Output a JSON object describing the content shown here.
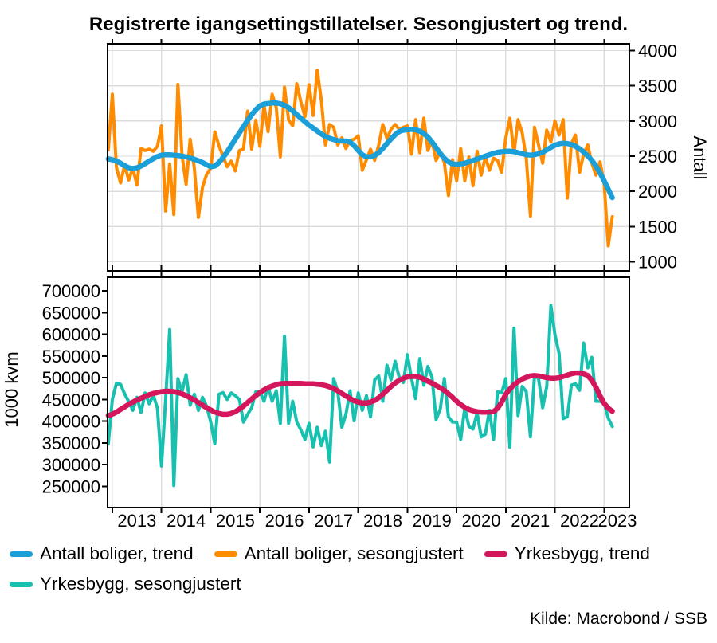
{
  "title": "Registrerte igangsettingstillatelser. Sesongjustert og trend.",
  "source": "Kilde: Macrobond / SSB",
  "legend": [
    {
      "label": "Antall boliger, trend",
      "color": "#1B9FD8"
    },
    {
      "label": "Antall boliger, sesongjustert",
      "color": "#FF8C00"
    },
    {
      "label": "Yrkesbygg, trend",
      "color": "#D4175C"
    },
    {
      "label": "Yrkesbygg, sesongjustert",
      "color": "#18C1AF"
    }
  ],
  "x_axis": {
    "years": [
      2013,
      2014,
      2015,
      2016,
      2017,
      2018,
      2019,
      2020,
      2021,
      2022,
      2023
    ],
    "start_month": "2012-12",
    "end_month": "2023-03",
    "frequency": "monthly"
  },
  "chart_data": [
    {
      "type": "line",
      "title": "",
      "xlabel": "",
      "ylabel": "Antall",
      "y_axis_side": "right",
      "ylim": [
        1000,
        4000
      ],
      "yticks": [
        1000,
        1500,
        2000,
        2500,
        3000,
        3500,
        4000
      ],
      "grid_horizontal": true,
      "grid_vertical": true,
      "legend_position": "below",
      "series": [
        {
          "name": "Antall boliger, sesongjustert",
          "role": "seasonal",
          "color": "#FF8C00",
          "values": [
            2590,
            3380,
            2340,
            2120,
            2370,
            2160,
            2330,
            2090,
            2610,
            2580,
            2600,
            2570,
            2640,
            2930,
            1720,
            2390,
            1670,
            3520,
            2510,
            2100,
            2740,
            2330,
            1630,
            2060,
            2240,
            2330,
            2845,
            2650,
            2500,
            2350,
            2430,
            2290,
            2580,
            2600,
            3140,
            2600,
            3010,
            2640,
            3230,
            2850,
            3380,
            3190,
            2490,
            3480,
            3020,
            2930,
            3530,
            3270,
            3060,
            3515,
            3080,
            3720,
            3290,
            2660,
            2950,
            2910,
            2660,
            2760,
            2610,
            2720,
            2740,
            2790,
            2300,
            2450,
            2600,
            2440,
            2660,
            2950,
            2750,
            2880,
            2950,
            2880,
            2910,
            2930,
            2530,
            3020,
            2550,
            3040,
            2580,
            2720,
            2440,
            2570,
            2410,
            1940,
            2450,
            2150,
            2610,
            2150,
            2490,
            2080,
            2570,
            2230,
            2490,
            2300,
            2470,
            2440,
            2270,
            2760,
            3040,
            2550,
            3020,
            2830,
            2470,
            1650,
            2910,
            2660,
            2400,
            2870,
            2700,
            3000,
            2800,
            3020,
            1905,
            2680,
            2800,
            2270,
            2530,
            2660,
            2400,
            2230,
            2420,
            2100,
            1225,
            1640
          ]
        },
        {
          "name": "Antall boliger, trend",
          "role": "trend",
          "color": "#1B9FD8",
          "values": [
            2460,
            2450,
            2430,
            2400,
            2365,
            2335,
            2325,
            2335,
            2360,
            2395,
            2430,
            2465,
            2495,
            2515,
            2520,
            2520,
            2515,
            2510,
            2500,
            2490,
            2475,
            2455,
            2435,
            2410,
            2380,
            2350,
            2360,
            2410,
            2480,
            2560,
            2650,
            2740,
            2830,
            2920,
            3010,
            3090,
            3160,
            3215,
            3240,
            3250,
            3255,
            3255,
            3245,
            3225,
            3190,
            3145,
            3090,
            3040,
            2990,
            2940,
            2900,
            2855,
            2815,
            2780,
            2755,
            2735,
            2720,
            2715,
            2715,
            2700,
            2650,
            2580,
            2520,
            2490,
            2490,
            2510,
            2550,
            2610,
            2680,
            2745,
            2805,
            2850,
            2870,
            2875,
            2880,
            2875,
            2855,
            2820,
            2770,
            2700,
            2620,
            2540,
            2470,
            2420,
            2390,
            2385,
            2390,
            2400,
            2420,
            2440,
            2460,
            2480,
            2500,
            2520,
            2540,
            2555,
            2565,
            2570,
            2570,
            2565,
            2550,
            2535,
            2520,
            2515,
            2520,
            2535,
            2555,
            2590,
            2625,
            2655,
            2675,
            2685,
            2680,
            2665,
            2640,
            2605,
            2560,
            2505,
            2440,
            2360,
            2260,
            2150,
            2030,
            1910
          ]
        }
      ]
    },
    {
      "type": "line",
      "title": "",
      "xlabel": "",
      "ylabel": "1000 kvm",
      "y_axis_side": "left",
      "ylim": [
        250000,
        700000
      ],
      "yticks": [
        250000,
        300000,
        350000,
        400000,
        450000,
        500000,
        550000,
        600000,
        650000,
        700000
      ],
      "grid_horizontal": false,
      "grid_vertical": true,
      "legend_position": "below",
      "series": [
        {
          "name": "Yrkesbygg, sesongjustert",
          "role": "seasonal",
          "color": "#18C1AF",
          "values": [
            348000,
            450000,
            487000,
            485000,
            463000,
            445000,
            425000,
            455000,
            420000,
            465000,
            440000,
            460000,
            430000,
            297000,
            450000,
            611000,
            252000,
            498000,
            468000,
            507000,
            437000,
            462000,
            425000,
            455000,
            435000,
            398000,
            348000,
            462000,
            466000,
            450000,
            465000,
            459000,
            450000,
            398000,
            416000,
            431000,
            468000,
            468000,
            446000,
            480000,
            446000,
            470000,
            395000,
            596000,
            395000,
            446000,
            398000,
            380000,
            358000,
            395000,
            341000,
            386000,
            344000,
            377000,
            306000,
            498000,
            468000,
            386000,
            416000,
            470000,
            401000,
            465000,
            425000,
            459000,
            410000,
            495000,
            504000,
            446000,
            529000,
            495000,
            538000,
            501000,
            489000,
            553000,
            498000,
            452000,
            544000,
            483000,
            526000,
            501000,
            404000,
            428000,
            498000,
            410000,
            398000,
            398000,
            358000,
            431000,
            388000,
            382000,
            419000,
            364000,
            370000,
            425000,
            358000,
            468000,
            465000,
            498000,
            340000,
            614000,
            413000,
            480000,
            468000,
            364000,
            504000,
            498000,
            431000,
            480000,
            666000,
            599000,
            556000,
            406000,
            410000,
            483000,
            486000,
            471000,
            580000,
            523000,
            547000,
            446000,
            446000,
            442000,
            407000,
            388000
          ]
        },
        {
          "name": "Yrkesbygg, trend",
          "role": "trend",
          "color": "#D4175C",
          "values": [
            413000,
            416000,
            421000,
            427000,
            433000,
            439000,
            444000,
            449000,
            453000,
            457000,
            461000,
            464000,
            466000,
            468000,
            469000,
            469000,
            468000,
            466000,
            463000,
            459000,
            454000,
            449000,
            443000,
            437000,
            431000,
            426000,
            421000,
            418000,
            416000,
            416000,
            418000,
            422000,
            428000,
            435000,
            443000,
            451000,
            459000,
            466000,
            472000,
            477000,
            481000,
            484000,
            486000,
            487000,
            487000,
            487000,
            487000,
            487000,
            486000,
            486000,
            486000,
            485000,
            484000,
            482000,
            479000,
            475000,
            470000,
            464000,
            458000,
            452000,
            447000,
            444000,
            442000,
            442000,
            444000,
            448000,
            454000,
            462000,
            471000,
            480000,
            488000,
            494000,
            499000,
            502000,
            503000,
            503000,
            501000,
            497000,
            492000,
            488000,
            482000,
            477000,
            471000,
            463000,
            455000,
            446000,
            438000,
            432000,
            427000,
            424000,
            422000,
            421000,
            421000,
            421000,
            422000,
            430000,
            444000,
            462000,
            474000,
            484000,
            491000,
            497000,
            501000,
            504000,
            505000,
            504000,
            502000,
            500000,
            499000,
            499000,
            500000,
            503000,
            506000,
            509000,
            511000,
            511000,
            509000,
            505000,
            494000,
            478000,
            458000,
            441000,
            430000,
            423000
          ]
        }
      ]
    }
  ]
}
